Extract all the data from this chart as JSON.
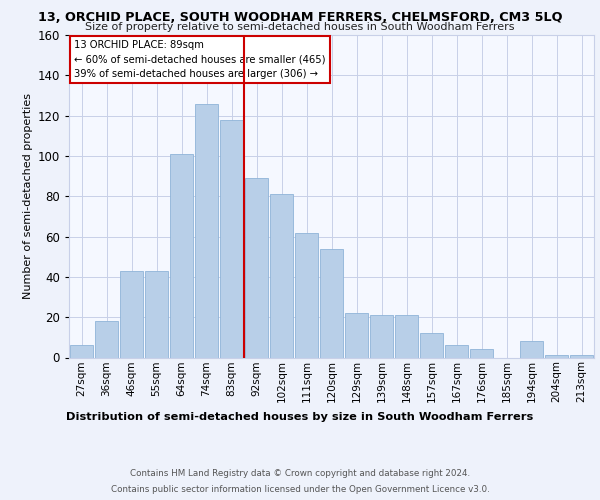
{
  "title": "13, ORCHID PLACE, SOUTH WOODHAM FERRERS, CHELMSFORD, CM3 5LQ",
  "subtitle": "Size of property relative to semi-detached houses in South Woodham Ferrers",
  "xlabel": "Distribution of semi-detached houses by size in South Woodham Ferrers",
  "ylabel": "Number of semi-detached properties",
  "categories": [
    "27sqm",
    "36sqm",
    "46sqm",
    "55sqm",
    "64sqm",
    "74sqm",
    "83sqm",
    "92sqm",
    "102sqm",
    "111sqm",
    "120sqm",
    "129sqm",
    "139sqm",
    "148sqm",
    "157sqm",
    "167sqm",
    "176sqm",
    "185sqm",
    "194sqm",
    "204sqm",
    "213sqm"
  ],
  "values": [
    6,
    18,
    43,
    43,
    101,
    126,
    118,
    89,
    81,
    62,
    54,
    22,
    21,
    21,
    12,
    6,
    4,
    0,
    8,
    1,
    1
  ],
  "bar_color": "#b8cfe8",
  "bar_edge_color": "#8fb4d8",
  "property_label": "13 ORCHID PLACE: 89sqm",
  "smaller_pct": "60%",
  "smaller_count": 465,
  "larger_pct": "39%",
  "larger_count": 306,
  "annotation_line_color": "#cc0000",
  "annotation_box_color": "#cc0000",
  "ylim": [
    0,
    160
  ],
  "yticks": [
    0,
    20,
    40,
    60,
    80,
    100,
    120,
    140,
    160
  ],
  "footer1": "Contains HM Land Registry data © Crown copyright and database right 2024.",
  "footer2": "Contains public sector information licensed under the Open Government Licence v3.0.",
  "bg_color": "#eef2fb",
  "plot_bg_color": "#f5f8ff",
  "grid_color": "#c8d0e8"
}
